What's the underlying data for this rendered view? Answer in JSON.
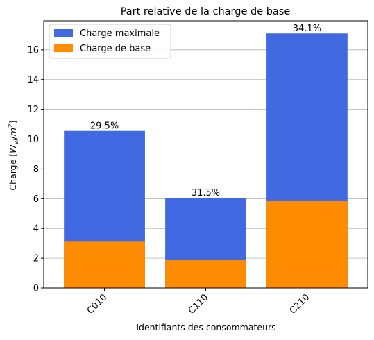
{
  "chart_data": {
    "type": "bar",
    "stacked_overlay": true,
    "title": "Part relative de la charge de base",
    "xlabel": "Identifiants des consommateurs",
    "ylabel_main": "Charge [",
    "ylabel_math": "W",
    "ylabel_sub": "el",
    "ylabel_slash": "/",
    "ylabel_m": "m",
    "ylabel_sup": "2",
    "ylabel_end": "]",
    "categories": [
      "C010",
      "C110",
      "C210"
    ],
    "series": [
      {
        "name": "Charge maximale",
        "color": "#4169e1",
        "values": [
          10.55,
          6.05,
          17.1
        ]
      },
      {
        "name": "Charge de base",
        "color": "#ff8c00",
        "values": [
          3.11,
          1.91,
          5.83
        ]
      }
    ],
    "bar_labels": [
      "29.5%",
      "31.5%",
      "34.1%"
    ],
    "ylim": [
      0,
      17.95
    ],
    "yticks": [
      0,
      2,
      4,
      6,
      8,
      10,
      12,
      14,
      16
    ],
    "grid": "y",
    "legend_position": "top-left"
  }
}
